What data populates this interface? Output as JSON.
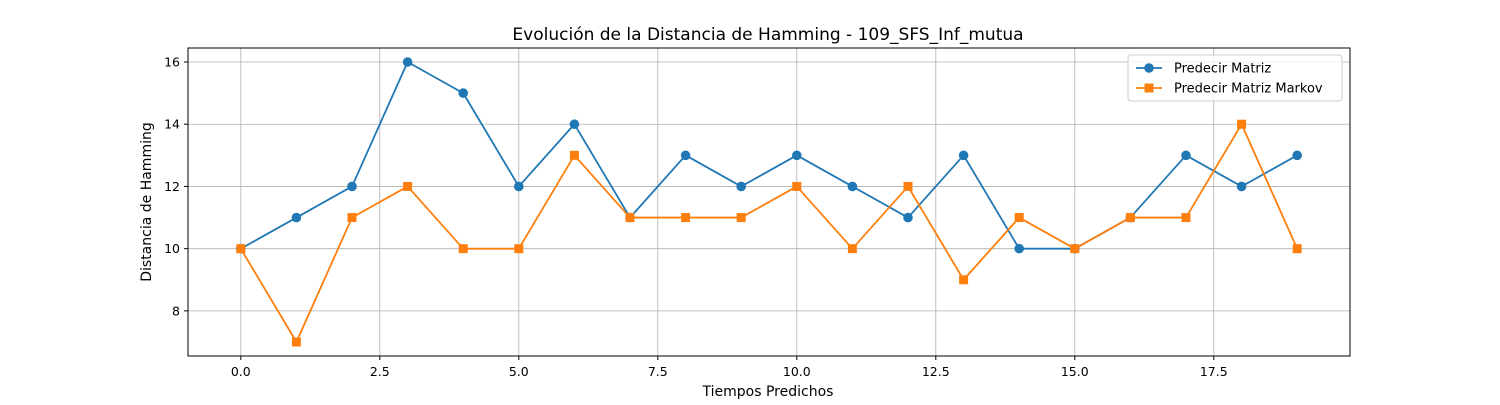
{
  "chart_data": {
    "type": "line",
    "title": "Evolución de la Distancia de Hamming - 109_SFS_Inf_mutua",
    "xlabel": "Tiempos Predichos",
    "ylabel": "Distancia de Hamming",
    "x": [
      0,
      1,
      2,
      3,
      4,
      5,
      6,
      7,
      8,
      9,
      10,
      11,
      12,
      13,
      14,
      15,
      16,
      17,
      18,
      19
    ],
    "xlim": [
      -0.95,
      19.95
    ],
    "ylim": [
      6.55,
      16.45
    ],
    "xticks": [
      0.0,
      2.5,
      5.0,
      7.5,
      10.0,
      12.5,
      15.0,
      17.5
    ],
    "xtick_labels": [
      "0.0",
      "2.5",
      "5.0",
      "7.5",
      "10.0",
      "12.5",
      "15.0",
      "17.5"
    ],
    "yticks": [
      8,
      10,
      12,
      14,
      16
    ],
    "ytick_labels": [
      "8",
      "10",
      "12",
      "14",
      "16"
    ],
    "grid": true,
    "legend_position": "top-right",
    "series": [
      {
        "name": "Predecir Matriz",
        "color": "#1f77b4",
        "marker": "circle",
        "values": [
          10,
          11,
          12,
          16,
          15,
          12,
          14,
          11,
          13,
          12,
          13,
          12,
          11,
          13,
          10,
          10,
          11,
          13,
          12,
          13
        ]
      },
      {
        "name": "Predecir Matriz Markov",
        "color": "#ff7f0e",
        "marker": "square",
        "values": [
          10,
          7,
          11,
          12,
          10,
          10,
          13,
          11,
          11,
          11,
          12,
          10,
          12,
          9,
          11,
          10,
          11,
          11,
          14,
          10
        ]
      }
    ]
  }
}
